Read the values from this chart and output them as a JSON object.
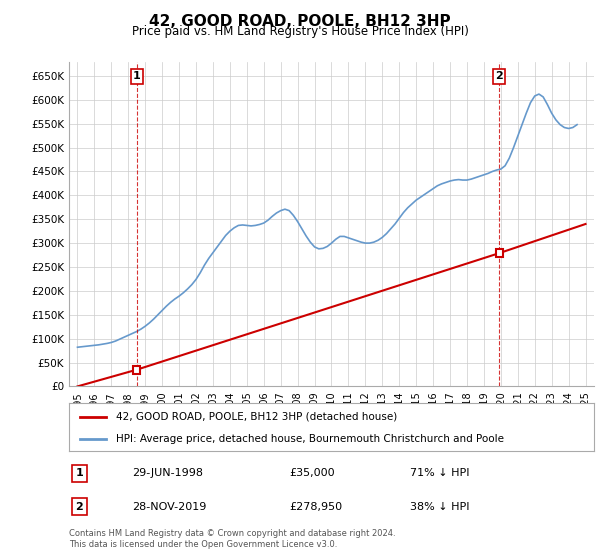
{
  "title": "42, GOOD ROAD, POOLE, BH12 3HP",
  "subtitle": "Price paid vs. HM Land Registry's House Price Index (HPI)",
  "hpi_label": "HPI: Average price, detached house, Bournemouth Christchurch and Poole",
  "property_label": "42, GOOD ROAD, POOLE, BH12 3HP (detached house)",
  "transaction1": {
    "label": "1",
    "date": "29-JUN-1998",
    "price": "£35,000",
    "hpi": "71% ↓ HPI",
    "year": 1998.5
  },
  "transaction2": {
    "label": "2",
    "date": "28-NOV-2019",
    "price": "£278,950",
    "hpi": "38% ↓ HPI",
    "year": 2019.9
  },
  "property_color": "#cc0000",
  "hpi_color": "#6699cc",
  "background_color": "#ffffff",
  "grid_color": "#cccccc",
  "ylim_min": 0,
  "ylim_max": 680000,
  "xlim_min": 1994.5,
  "xlim_max": 2025.5,
  "yticks": [
    0,
    50000,
    100000,
    150000,
    200000,
    250000,
    300000,
    350000,
    400000,
    450000,
    500000,
    550000,
    600000,
    650000
  ],
  "ytick_labels": [
    "£0",
    "£50K",
    "£100K",
    "£150K",
    "£200K",
    "£250K",
    "£300K",
    "£350K",
    "£400K",
    "£450K",
    "£500K",
    "£550K",
    "£600K",
    "£650K"
  ],
  "xticks": [
    1995,
    1996,
    1997,
    1998,
    1999,
    2000,
    2001,
    2002,
    2003,
    2004,
    2005,
    2006,
    2007,
    2008,
    2009,
    2010,
    2011,
    2012,
    2013,
    2014,
    2015,
    2016,
    2017,
    2018,
    2019,
    2020,
    2021,
    2022,
    2023,
    2024,
    2025
  ],
  "footnote": "Contains HM Land Registry data © Crown copyright and database right 2024.\nThis data is licensed under the Open Government Licence v3.0.",
  "hpi_data_x": [
    1995.0,
    1995.25,
    1995.5,
    1995.75,
    1996.0,
    1996.25,
    1996.5,
    1996.75,
    1997.0,
    1997.25,
    1997.5,
    1997.75,
    1998.0,
    1998.25,
    1998.5,
    1998.75,
    1999.0,
    1999.25,
    1999.5,
    1999.75,
    2000.0,
    2000.25,
    2000.5,
    2000.75,
    2001.0,
    2001.25,
    2001.5,
    2001.75,
    2002.0,
    2002.25,
    2002.5,
    2002.75,
    2003.0,
    2003.25,
    2003.5,
    2003.75,
    2004.0,
    2004.25,
    2004.5,
    2004.75,
    2005.0,
    2005.25,
    2005.5,
    2005.75,
    2006.0,
    2006.25,
    2006.5,
    2006.75,
    2007.0,
    2007.25,
    2007.5,
    2007.75,
    2008.0,
    2008.25,
    2008.5,
    2008.75,
    2009.0,
    2009.25,
    2009.5,
    2009.75,
    2010.0,
    2010.25,
    2010.5,
    2010.75,
    2011.0,
    2011.25,
    2011.5,
    2011.75,
    2012.0,
    2012.25,
    2012.5,
    2012.75,
    2013.0,
    2013.25,
    2013.5,
    2013.75,
    2014.0,
    2014.25,
    2014.5,
    2014.75,
    2015.0,
    2015.25,
    2015.5,
    2015.75,
    2016.0,
    2016.25,
    2016.5,
    2016.75,
    2017.0,
    2017.25,
    2017.5,
    2017.75,
    2018.0,
    2018.25,
    2018.5,
    2018.75,
    2019.0,
    2019.25,
    2019.5,
    2019.75,
    2020.0,
    2020.25,
    2020.5,
    2020.75,
    2021.0,
    2021.25,
    2021.5,
    2021.75,
    2022.0,
    2022.25,
    2022.5,
    2022.75,
    2023.0,
    2023.25,
    2023.5,
    2023.75,
    2024.0,
    2024.25,
    2024.5
  ],
  "hpi_data_y": [
    82000,
    83000,
    84000,
    85000,
    86000,
    87000,
    88500,
    90000,
    92000,
    95000,
    99000,
    103000,
    107000,
    111000,
    115000,
    120000,
    126000,
    133000,
    141000,
    150000,
    159000,
    168000,
    176000,
    183000,
    189000,
    196000,
    204000,
    213000,
    224000,
    238000,
    254000,
    268000,
    280000,
    292000,
    304000,
    316000,
    325000,
    332000,
    337000,
    338000,
    337000,
    336000,
    337000,
    339000,
    342000,
    348000,
    356000,
    363000,
    368000,
    371000,
    368000,
    358000,
    345000,
    330000,
    315000,
    302000,
    292000,
    288000,
    289000,
    293000,
    300000,
    308000,
    314000,
    314000,
    311000,
    308000,
    305000,
    302000,
    300000,
    300000,
    302000,
    306000,
    312000,
    320000,
    330000,
    340000,
    352000,
    364000,
    374000,
    382000,
    390000,
    396000,
    402000,
    408000,
    414000,
    420000,
    424000,
    427000,
    430000,
    432000,
    433000,
    432000,
    432000,
    434000,
    437000,
    440000,
    443000,
    446000,
    450000,
    453000,
    455000,
    462000,
    478000,
    500000,
    524000,
    548000,
    572000,
    594000,
    608000,
    612000,
    606000,
    590000,
    572000,
    558000,
    548000,
    542000,
    540000,
    542000,
    548000
  ],
  "property_data_x": [
    1995.0,
    1998.5,
    2019.9,
    2025.0
  ],
  "property_data_y": [
    0,
    35000,
    278950,
    340000
  ]
}
